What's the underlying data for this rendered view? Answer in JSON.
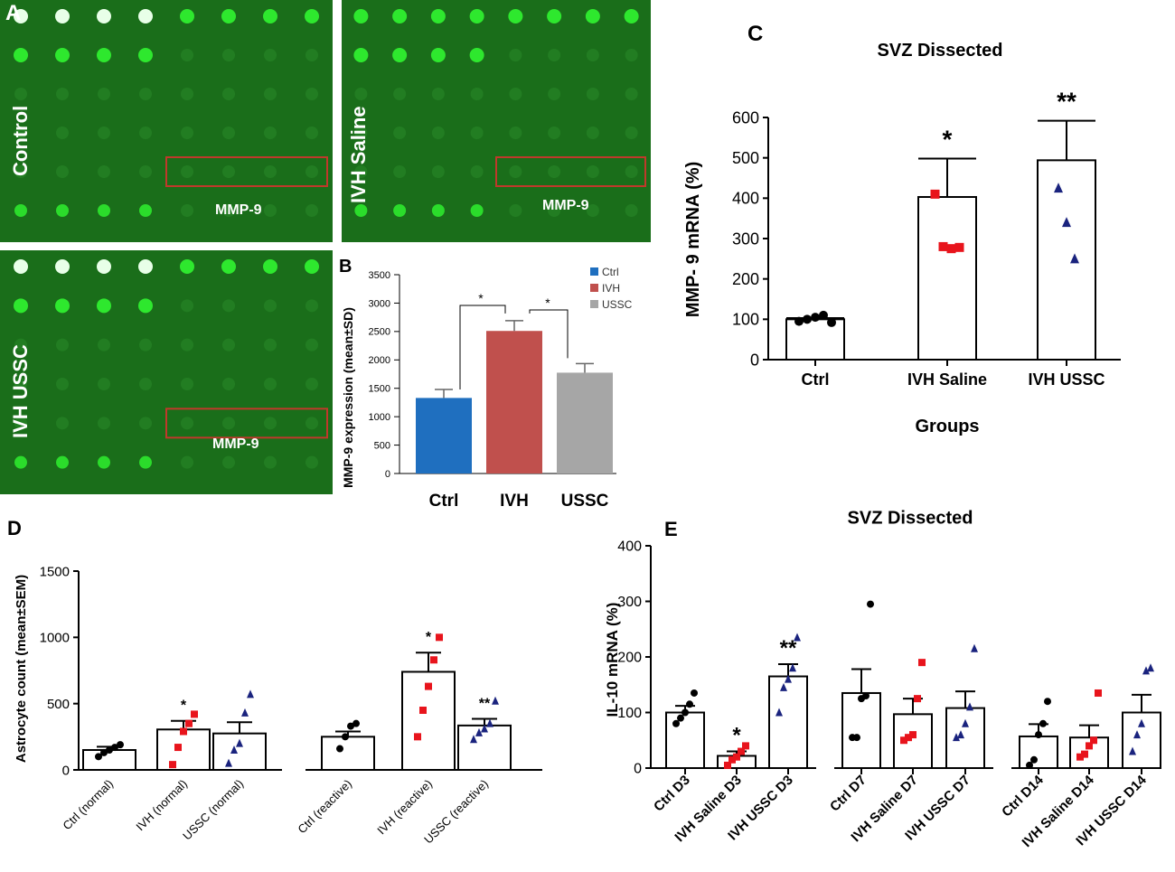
{
  "colors": {
    "ctrl_bar": "#1f6fbf",
    "ivh_bar": "#c0504d",
    "ussc_bar": "#a6a6a6",
    "ctrl_marker": "#000000",
    "ivh_marker": "#e8141c",
    "ussc_marker": "#1a237e",
    "array_bg": "#1a6e1a",
    "spot": "#2ee82e",
    "box": "#c0392b"
  },
  "panel_a": {
    "letter": "A",
    "images": [
      {
        "label": "Control",
        "box_label": "MMP-9"
      },
      {
        "label": "IVH Saline",
        "box_label": "MMP-9"
      },
      {
        "label": "IVH USSC",
        "box_label": "MMP-9"
      }
    ]
  },
  "chart_data": [
    {
      "panel": "B",
      "type": "bar",
      "title": "",
      "ylabel": "MMP-9 expression (mean±SD)",
      "xlabel": "",
      "categories": [
        "Ctrl",
        "IVH",
        "USSC"
      ],
      "values": [
        1330,
        2510,
        1775
      ],
      "errors": [
        150,
        180,
        160
      ],
      "ylim": [
        0,
        3500
      ],
      "yticks": [
        "0",
        "500",
        "1000",
        "1500",
        "2000",
        "2500",
        "3000",
        "3500"
      ],
      "legend": [
        "Ctrl",
        "IVH",
        "USSC"
      ],
      "legend_position": "top-right",
      "significance": [
        "*",
        "*"
      ]
    },
    {
      "panel": "C",
      "type": "bar",
      "title": "SVZ Dissected",
      "ylabel": "MMP- 9  mRNA (%)",
      "xlabel": "Groups",
      "categories": [
        "Ctrl",
        "IVH Saline",
        "IVH USSC"
      ],
      "values": [
        100,
        403,
        494
      ],
      "errors": [
        3,
        95,
        98
      ],
      "points": [
        [
          95,
          100,
          105,
          110,
          92
        ],
        [
          410,
          280,
          275,
          278
        ],
        [
          425,
          340,
          250
        ]
      ],
      "ylim": [
        0,
        600
      ],
      "yticks": [
        "0",
        "100",
        "200",
        "300",
        "400",
        "500",
        "600"
      ],
      "annotations": [
        "",
        "*",
        "**"
      ]
    },
    {
      "panel": "D",
      "type": "bar",
      "title": "",
      "ylabel": "Astrocyte count (mean±SEM)",
      "xlabel": "",
      "categories": [
        "Ctrl (normal)",
        "IVH (normal)",
        "USSC (normal)",
        "Ctrl (reactive)",
        "IVH (reactive)",
        "USSC (reactive)"
      ],
      "values": [
        150,
        305,
        275,
        250,
        740,
        335
      ],
      "errors": [
        25,
        65,
        85,
        40,
        145,
        50
      ],
      "points": [
        [
          100,
          130,
          150,
          170,
          190
        ],
        [
          40,
          170,
          290,
          350,
          420
        ],
        [
          50,
          150,
          200,
          430,
          570
        ],
        [
          160,
          250,
          330,
          350
        ],
        [
          250,
          450,
          630,
          830,
          1000
        ],
        [
          230,
          280,
          310,
          350,
          520
        ]
      ],
      "ylim": [
        0,
        1500
      ],
      "yticks": [
        "0",
        "500",
        "1000",
        "1500"
      ],
      "annotations": [
        "",
        "*",
        "",
        "",
        "*",
        "**"
      ]
    },
    {
      "panel": "E",
      "type": "bar",
      "title": "SVZ  Dissected",
      "ylabel": "IL-10 mRNA (%)",
      "xlabel": "",
      "categories": [
        "Ctrl D3",
        "IVH Saline D3",
        "IVH USSC D3",
        "Ctrl D7",
        "IVH Saline D7",
        "IVH USSC D7",
        "Ctrl D14",
        "IVH Saline D14",
        "IVH USSC D14"
      ],
      "values": [
        100,
        22,
        165,
        135,
        97,
        108,
        57,
        55,
        100
      ],
      "errors": [
        12,
        8,
        22,
        43,
        28,
        30,
        22,
        22,
        32
      ],
      "points": [
        [
          80,
          90,
          100,
          115,
          135
        ],
        [
          5,
          15,
          20,
          30,
          40
        ],
        [
          100,
          145,
          160,
          180,
          235
        ],
        [
          55,
          55,
          125,
          130,
          295
        ],
        [
          50,
          55,
          60,
          125,
          190
        ],
        [
          55,
          60,
          80,
          110,
          215
        ],
        [
          5,
          15,
          60,
          80,
          120
        ],
        [
          20,
          25,
          40,
          50,
          135
        ],
        [
          30,
          60,
          80,
          175,
          180
        ]
      ],
      "ylim": [
        0,
        400
      ],
      "yticks": [
        "0",
        "100",
        "200",
        "300",
        "400"
      ],
      "annotations": [
        "",
        "*",
        "**",
        "",
        "",
        "",
        "",
        "",
        ""
      ]
    }
  ]
}
